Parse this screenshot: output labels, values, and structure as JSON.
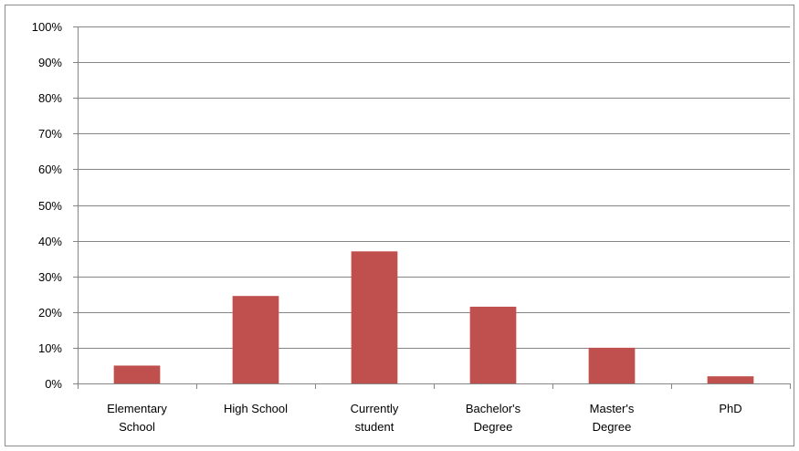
{
  "chart_data": {
    "type": "bar",
    "categories": [
      [
        "Elementary",
        "School"
      ],
      [
        "High School"
      ],
      [
        "Currently",
        "student"
      ],
      [
        "Bachelor's",
        "Degree"
      ],
      [
        "Master's",
        "Degree"
      ],
      [
        "PhD"
      ]
    ],
    "values": [
      5,
      24.5,
      37,
      21.5,
      10,
      2
    ],
    "value_format": "percent",
    "title": "",
    "xlabel": "",
    "ylabel": "",
    "ylim": [
      0,
      100
    ],
    "yticks": [
      0,
      10,
      20,
      30,
      40,
      50,
      60,
      70,
      80,
      90,
      100
    ],
    "ytick_labels": [
      "0%",
      "10%",
      "20%",
      "30%",
      "40%",
      "50%",
      "60%",
      "70%",
      "80%",
      "90%",
      "100%"
    ],
    "grid": true,
    "legend": "none",
    "colors": {
      "bar": "#c0504d",
      "grid": "#868686",
      "axis": "#868686",
      "text": "#000000"
    }
  }
}
